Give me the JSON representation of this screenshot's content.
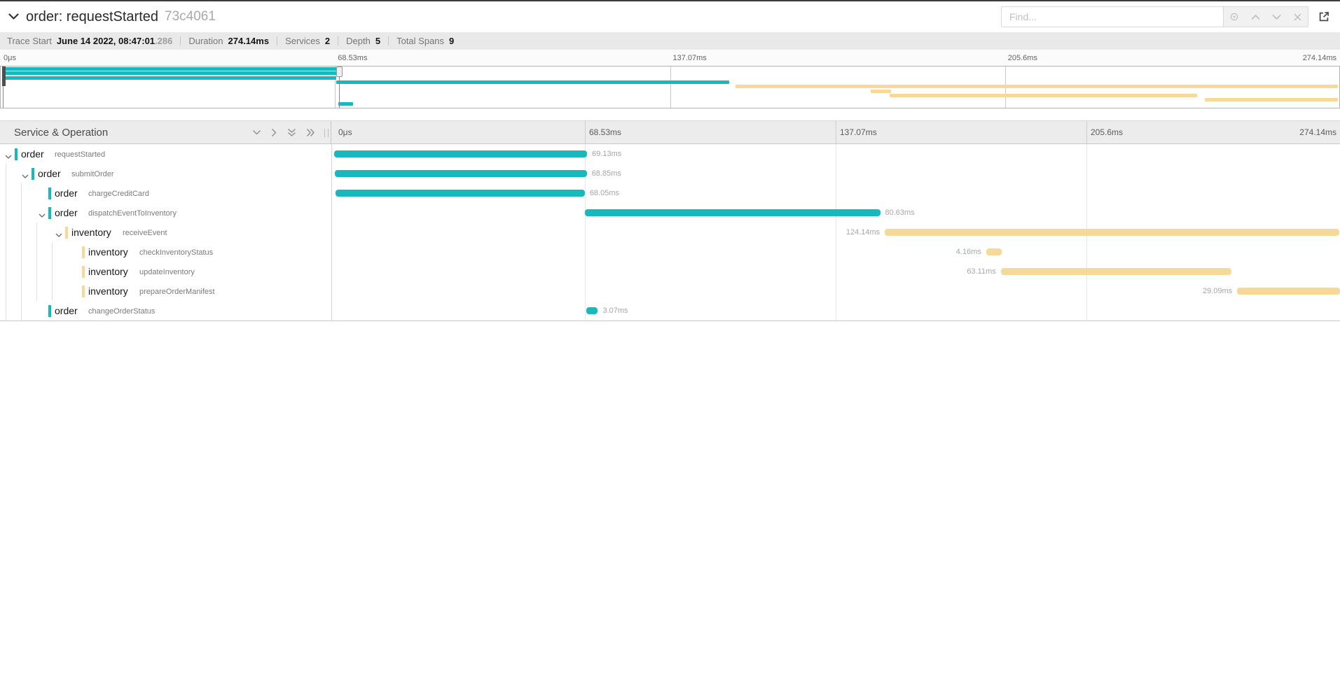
{
  "header": {
    "title": "order: requestStarted",
    "trace_id": "73c4061",
    "collapse_icon": "chevron-down-icon",
    "find": {
      "placeholder": "Find...",
      "buttons": [
        "locate-icon",
        "prev-match-icon",
        "next-match-icon",
        "clear-icon"
      ]
    },
    "open_window_icon": "external-link-icon"
  },
  "summary": {
    "items": [
      {
        "label": "Trace Start",
        "value": "June 14 2022, 08:47:01",
        "suffix": ".286"
      },
      {
        "label": "Duration",
        "value": "274.14ms"
      },
      {
        "label": "Services",
        "value": "2"
      },
      {
        "label": "Depth",
        "value": "5"
      },
      {
        "label": "Total Spans",
        "value": "9"
      }
    ]
  },
  "timeline": {
    "total_ms": 274.14,
    "ticks": [
      "0μs",
      "68.53ms",
      "137.07ms",
      "205.6ms",
      "274.14ms"
    ],
    "left_header": "Service & Operation",
    "header_icons": [
      "collapse-one-icon",
      "expand-one-icon",
      "collapse-all-icon",
      "expand-all-icon"
    ],
    "service_colors": {
      "order": "#17b8be",
      "inventory": "#f6d998"
    }
  },
  "minimap": {
    "selection_start_ms": 0,
    "selection_end_ms": 69.13
  },
  "spans": [
    {
      "service": "order",
      "operation": "requestStarted",
      "depth": 0,
      "expander": true,
      "start_ms": 0.0,
      "duration_ms": 69.13,
      "duration_label": "69.13ms",
      "label_side": "right"
    },
    {
      "service": "order",
      "operation": "submitOrder",
      "depth": 1,
      "expander": true,
      "start_ms": 0.2,
      "duration_ms": 68.85,
      "duration_label": "68.85ms",
      "label_side": "right"
    },
    {
      "service": "order",
      "operation": "chargeCreditCard",
      "depth": 2,
      "expander": false,
      "start_ms": 0.45,
      "duration_ms": 68.05,
      "duration_label": "68.05ms",
      "label_side": "right"
    },
    {
      "service": "order",
      "operation": "dispatchEventToInventory",
      "depth": 2,
      "expander": true,
      "start_ms": 68.6,
      "duration_ms": 80.63,
      "duration_label": "80.63ms",
      "label_side": "right"
    },
    {
      "service": "inventory",
      "operation": "receiveEvent",
      "depth": 3,
      "expander": true,
      "start_ms": 150.5,
      "duration_ms": 124.14,
      "duration_label": "124.14ms",
      "label_side": "left"
    },
    {
      "service": "inventory",
      "operation": "checkInventoryStatus",
      "depth": 4,
      "expander": false,
      "start_ms": 178.2,
      "duration_ms": 4.16,
      "duration_label": "4.16ms",
      "label_side": "left"
    },
    {
      "service": "inventory",
      "operation": "updateInventory",
      "depth": 4,
      "expander": false,
      "start_ms": 182.2,
      "duration_ms": 63.11,
      "duration_label": "63.11ms",
      "label_side": "left"
    },
    {
      "service": "inventory",
      "operation": "prepareOrderManifest",
      "depth": 4,
      "expander": false,
      "start_ms": 246.8,
      "duration_ms": 29.09,
      "duration_label": "29.09ms",
      "label_side": "left"
    },
    {
      "service": "order",
      "operation": "changeOrderStatus",
      "depth": 2,
      "expander": false,
      "start_ms": 69.0,
      "duration_ms": 3.07,
      "duration_label": "3.07ms",
      "label_side": "right"
    }
  ]
}
